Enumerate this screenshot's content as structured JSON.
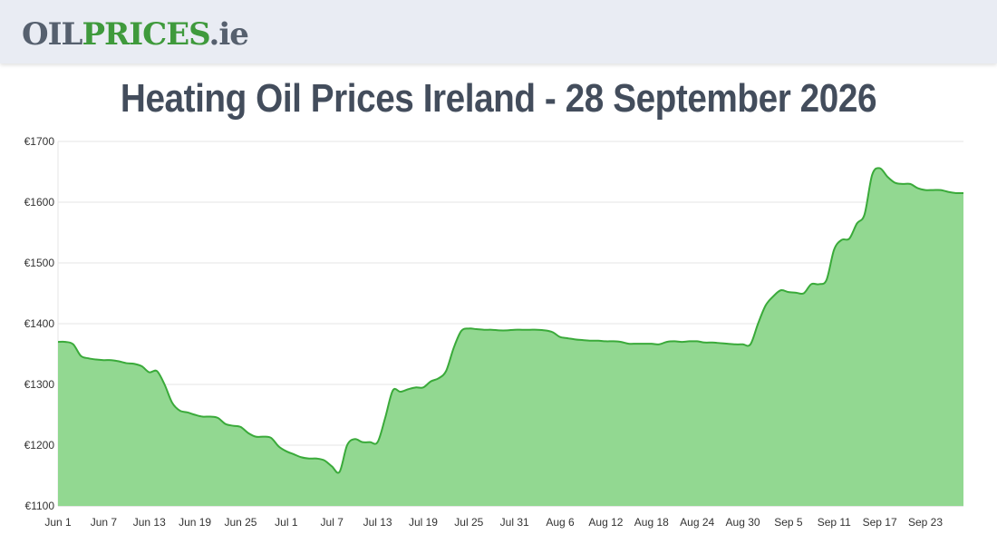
{
  "logo": {
    "part1": "OIL",
    "part2": "PRICES",
    "part3": ".ie"
  },
  "page_title": "Heating Oil Prices Ireland - 28 September 2026",
  "colors": {
    "line": "#3aaa3a",
    "fill": "#92d891",
    "grid": "#e6e6e6"
  },
  "chart_data": {
    "type": "area",
    "title": "Heating Oil Prices Ireland - 28 September 2026",
    "xlabel": "",
    "ylabel": "",
    "ylim": [
      1100,
      1700
    ],
    "yticks": [
      "€1700",
      "€1600",
      "€1500",
      "€1400",
      "€1300",
      "€1200",
      "€1100"
    ],
    "ytick_values": [
      1700,
      1600,
      1500,
      1400,
      1300,
      1200,
      1100
    ],
    "x_tick_labels": [
      "Jun 1",
      "Jun 7",
      "Jun 13",
      "Jun 19",
      "Jun 25",
      "Jul 1",
      "Jul 7",
      "Jul 13",
      "Jul 19",
      "Jul 25",
      "Jul 31",
      "Aug 6",
      "Aug 12",
      "Aug 18",
      "Aug 24",
      "Aug 30",
      "Sep 5",
      "Sep 11",
      "Sep 17",
      "Sep 23"
    ],
    "x_tick_days": [
      0,
      6,
      12,
      18,
      24,
      30,
      36,
      42,
      48,
      54,
      60,
      66,
      72,
      78,
      84,
      90,
      96,
      102,
      108,
      114
    ],
    "x_range_days": [
      0,
      119
    ],
    "grid": true,
    "legend": "none",
    "series": [
      {
        "x": [
          0,
          1,
          2,
          3,
          4,
          5,
          6,
          7,
          8,
          9,
          10,
          11,
          12,
          13,
          14,
          15,
          16,
          17,
          18,
          19,
          20,
          21,
          22,
          23,
          24,
          25,
          26,
          27,
          28,
          29,
          30,
          31,
          32,
          33,
          34,
          35,
          36,
          37,
          38,
          39,
          40,
          41,
          42,
          43,
          44,
          45,
          46,
          47,
          48,
          49,
          50,
          51,
          52,
          53,
          54,
          55,
          56,
          57,
          58,
          59,
          60,
          61,
          62,
          63,
          64,
          65,
          66,
          67,
          68,
          69,
          70,
          71,
          72,
          73,
          74,
          75,
          76,
          77,
          78,
          79,
          80,
          81,
          82,
          83,
          84,
          85,
          86,
          87,
          88,
          89,
          90,
          91,
          92,
          93,
          94,
          95,
          96,
          97,
          98,
          99,
          100,
          101,
          102,
          103,
          104,
          105,
          106,
          107,
          108,
          109,
          110,
          111,
          112,
          113,
          114,
          115,
          116,
          117,
          118,
          119
        ],
        "y": [
          1370,
          1370,
          1366,
          1347,
          1343,
          1341,
          1340,
          1340,
          1338,
          1335,
          1334,
          1330,
          1320,
          1322,
          1300,
          1270,
          1257,
          1254,
          1250,
          1247,
          1247,
          1245,
          1235,
          1232,
          1230,
          1220,
          1214,
          1214,
          1212,
          1198,
          1190,
          1185,
          1180,
          1178,
          1178,
          1175,
          1165,
          1156,
          1200,
          1210,
          1205,
          1205,
          1205,
          1245,
          1290,
          1288,
          1292,
          1295,
          1295,
          1305,
          1310,
          1322,
          1360,
          1388,
          1392,
          1391,
          1390,
          1390,
          1389,
          1389,
          1390,
          1390,
          1390,
          1390,
          1389,
          1386,
          1378,
          1376,
          1374,
          1373,
          1372,
          1372,
          1371,
          1371,
          1370,
          1367,
          1367,
          1367,
          1367,
          1366,
          1370,
          1371,
          1370,
          1371,
          1371,
          1369,
          1369,
          1368,
          1367,
          1366,
          1366,
          1366,
          1400,
          1430,
          1445,
          1455,
          1452,
          1451,
          1450,
          1465,
          1465,
          1472,
          1522,
          1538,
          1540,
          1565,
          1580,
          1645,
          1656,
          1642,
          1632,
          1630,
          1630,
          1623,
          1620,
          1620,
          1620,
          1617,
          1615,
          1615
        ]
      }
    ]
  }
}
